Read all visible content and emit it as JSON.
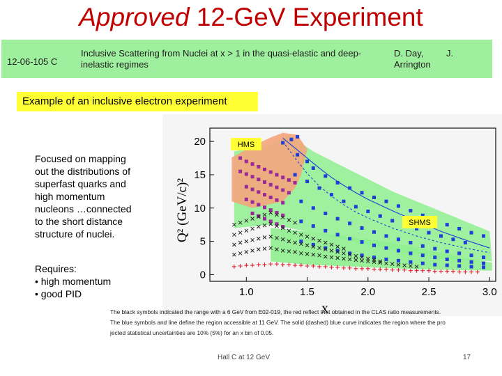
{
  "slide": {
    "title_italic": "Approved",
    "title_rest": " 12-GeV Experiment",
    "experiment": {
      "id": "12-06-105  C",
      "title": "Inclusive Scattering from Nuclei at x > 1 in the quasi-elastic and deep-inelastic regimes",
      "authors_line1": "D. Day,",
      "authors_j": "J.",
      "authors_line2": "Arrington"
    },
    "example_label": "Example of an inclusive electron experiment",
    "description": "Focused on mapping out the distributions of superfast quarks and high momentum nucleons …connected to the short distance structure of nuclei.",
    "requires": {
      "heading": "Requires:",
      "items": [
        "• high momentum",
        "• good PID"
      ]
    },
    "caption_lines": [
      "The black symbols indicated the range with a 6 GeV from E02-019, the red reflect that obtained in the CLAS ratio measurements.",
      "The blue symbols and line define the region accessible at 11 GeV. The solid (dashed) blue curve indicates the region where the pro",
      "jected statistical uncertainties are 10% (5%) for an x bin of 0.05."
    ],
    "footer": "Hall C at 12 GeV",
    "page_number": "17"
  },
  "chart_data": {
    "type": "scatter",
    "xlabel": "x",
    "ylabel": "Q² (GeV/c)²",
    "xlim": [
      0.7,
      3.05
    ],
    "ylim": [
      -1,
      22
    ],
    "x_ticks": [
      "1.0",
      "1.5",
      "2.0",
      "2.5",
      "3.0"
    ],
    "y_ticks": [
      "0",
      "5",
      "10",
      "15",
      "20"
    ],
    "annotations": [
      "HMS",
      "SHMS"
    ],
    "regions": {
      "hms_color": "#f4a57c",
      "shms_color": "#8ff08f"
    },
    "series": [
      {
        "marker": "square",
        "color": "#1f3fd6",
        "points": [
          [
            1.3,
            19.8
          ],
          [
            1.37,
            20.3
          ],
          [
            1.42,
            20.7
          ],
          [
            1.42,
            18.0
          ],
          [
            1.5,
            17.0
          ],
          [
            1.55,
            16.0
          ],
          [
            1.65,
            14.8
          ],
          [
            1.75,
            13.8
          ],
          [
            1.85,
            13.0
          ],
          [
            1.95,
            12.3
          ],
          [
            2.05,
            11.6
          ],
          [
            2.15,
            11.0
          ],
          [
            2.25,
            10.3
          ],
          [
            2.35,
            9.6
          ],
          [
            2.45,
            8.9
          ],
          [
            2.55,
            8.2
          ],
          [
            2.65,
            7.5
          ],
          [
            2.75,
            6.9
          ],
          [
            2.85,
            6.3
          ],
          [
            2.95,
            5.8
          ],
          [
            1.4,
            15.0
          ],
          [
            1.5,
            14.0
          ],
          [
            1.6,
            13.0
          ],
          [
            1.7,
            12.0
          ],
          [
            1.8,
            11.0
          ],
          [
            1.9,
            10.2
          ],
          [
            2.0,
            9.5
          ],
          [
            2.1,
            8.8
          ],
          [
            2.2,
            8.1
          ],
          [
            2.3,
            7.5
          ],
          [
            2.4,
            6.9
          ],
          [
            2.5,
            6.3
          ],
          [
            2.6,
            5.8
          ],
          [
            2.7,
            5.3
          ],
          [
            2.8,
            4.8
          ],
          [
            1.45,
            11.0
          ],
          [
            1.55,
            10.0
          ],
          [
            1.65,
            9.2
          ],
          [
            1.75,
            8.4
          ],
          [
            1.85,
            7.7
          ],
          [
            1.95,
            7.0
          ],
          [
            2.05,
            6.4
          ],
          [
            2.15,
            5.8
          ],
          [
            2.25,
            5.3
          ],
          [
            2.35,
            4.8
          ],
          [
            2.45,
            4.3
          ],
          [
            2.55,
            3.9
          ],
          [
            2.65,
            3.5
          ],
          [
            2.75,
            3.2
          ],
          [
            2.85,
            2.9
          ],
          [
            2.95,
            2.6
          ],
          [
            1.45,
            8.0
          ],
          [
            1.55,
            7.3
          ],
          [
            1.65,
            6.6
          ],
          [
            1.75,
            6.0
          ],
          [
            1.85,
            5.4
          ],
          [
            1.95,
            4.9
          ],
          [
            2.05,
            4.4
          ],
          [
            2.15,
            4.0
          ],
          [
            2.25,
            3.6
          ],
          [
            2.35,
            3.2
          ],
          [
            2.45,
            2.9
          ],
          [
            2.55,
            2.6
          ],
          [
            2.65,
            2.3
          ],
          [
            2.75,
            2.1
          ],
          [
            2.85,
            1.9
          ],
          [
            2.95,
            1.7
          ],
          [
            1.45,
            5.0
          ],
          [
            1.55,
            4.5
          ],
          [
            1.65,
            4.0
          ],
          [
            1.75,
            3.6
          ],
          [
            1.85,
            3.2
          ],
          [
            1.95,
            2.9
          ],
          [
            2.05,
            2.6
          ],
          [
            2.15,
            2.3
          ],
          [
            2.25,
            2.1
          ],
          [
            2.35,
            1.9
          ],
          [
            2.45,
            1.7
          ],
          [
            2.55,
            1.5
          ],
          [
            2.65,
            1.4
          ],
          [
            2.75,
            1.3
          ],
          [
            2.85,
            1.2
          ],
          [
            2.95,
            1.1
          ]
        ]
      },
      {
        "marker": "square",
        "color": "#9a2a9a",
        "points": [
          [
            0.95,
            17.5
          ],
          [
            1.0,
            17.0
          ],
          [
            1.05,
            16.6
          ],
          [
            1.1,
            16.2
          ],
          [
            1.15,
            15.8
          ],
          [
            1.2,
            15.4
          ],
          [
            1.25,
            15.0
          ],
          [
            1.3,
            14.6
          ],
          [
            1.35,
            14.2
          ],
          [
            1.4,
            13.8
          ],
          [
            0.95,
            15.5
          ],
          [
            1.0,
            15.1
          ],
          [
            1.05,
            14.7
          ],
          [
            1.1,
            14.3
          ],
          [
            1.15,
            13.9
          ],
          [
            1.2,
            13.5
          ],
          [
            1.25,
            13.1
          ],
          [
            1.3,
            12.7
          ],
          [
            1.35,
            12.3
          ],
          [
            1.0,
            13.2
          ],
          [
            1.05,
            12.8
          ],
          [
            1.1,
            12.4
          ],
          [
            1.15,
            12.0
          ],
          [
            1.2,
            11.6
          ],
          [
            1.25,
            11.2
          ],
          [
            1.3,
            10.8
          ],
          [
            1.0,
            11.3
          ],
          [
            1.05,
            10.9
          ],
          [
            1.1,
            10.5
          ],
          [
            1.15,
            10.1
          ],
          [
            1.2,
            9.7
          ],
          [
            1.25,
            9.3
          ],
          [
            1.3,
            8.9
          ],
          [
            1.05,
            9.2
          ],
          [
            1.1,
            8.8
          ],
          [
            1.15,
            8.4
          ],
          [
            1.2,
            8.0
          ],
          [
            1.25,
            7.6
          ],
          [
            1.3,
            7.2
          ]
        ]
      },
      {
        "marker": "cross",
        "color": "#222222",
        "points": [
          [
            0.9,
            7.5
          ],
          [
            0.95,
            7.8
          ],
          [
            1.0,
            8.1
          ],
          [
            1.05,
            8.4
          ],
          [
            1.1,
            8.7
          ],
          [
            1.15,
            9.0
          ],
          [
            1.2,
            9.3
          ],
          [
            1.25,
            9.0
          ],
          [
            1.3,
            8.6
          ],
          [
            1.35,
            8.2
          ],
          [
            1.4,
            7.8
          ],
          [
            0.9,
            6.0
          ],
          [
            0.95,
            6.3
          ],
          [
            1.0,
            6.6
          ],
          [
            1.05,
            6.9
          ],
          [
            1.1,
            7.2
          ],
          [
            1.15,
            7.4
          ],
          [
            1.2,
            7.6
          ],
          [
            1.25,
            7.3
          ],
          [
            1.3,
            7.0
          ],
          [
            1.35,
            6.6
          ],
          [
            1.4,
            6.3
          ],
          [
            1.45,
            6.0
          ],
          [
            1.5,
            5.7
          ],
          [
            1.55,
            5.4
          ],
          [
            1.6,
            5.1
          ],
          [
            1.65,
            4.8
          ],
          [
            1.7,
            4.5
          ],
          [
            1.75,
            4.2
          ],
          [
            1.8,
            3.9
          ],
          [
            0.9,
            4.5
          ],
          [
            0.95,
            4.8
          ],
          [
            1.0,
            5.0
          ],
          [
            1.05,
            5.2
          ],
          [
            1.1,
            5.4
          ],
          [
            1.15,
            5.6
          ],
          [
            1.2,
            5.7
          ],
          [
            1.25,
            5.5
          ],
          [
            1.3,
            5.3
          ],
          [
            1.35,
            5.0
          ],
          [
            1.4,
            4.8
          ],
          [
            1.45,
            4.6
          ],
          [
            1.5,
            4.4
          ],
          [
            1.55,
            4.2
          ],
          [
            1.6,
            4.0
          ],
          [
            1.65,
            3.8
          ],
          [
            1.7,
            3.6
          ],
          [
            1.75,
            3.4
          ],
          [
            1.8,
            3.2
          ],
          [
            1.85,
            3.0
          ],
          [
            1.9,
            2.8
          ],
          [
            1.95,
            2.6
          ],
          [
            2.0,
            2.4
          ],
          [
            2.05,
            2.2
          ],
          [
            2.1,
            2.0
          ],
          [
            0.9,
            3.0
          ],
          [
            0.95,
            3.2
          ],
          [
            1.0,
            3.4
          ],
          [
            1.05,
            3.6
          ],
          [
            1.1,
            3.8
          ],
          [
            1.15,
            3.9
          ],
          [
            1.2,
            4.0
          ],
          [
            1.25,
            3.8
          ],
          [
            1.3,
            3.6
          ],
          [
            1.35,
            3.5
          ],
          [
            1.4,
            3.4
          ],
          [
            1.45,
            3.2
          ],
          [
            1.5,
            3.1
          ],
          [
            1.55,
            3.0
          ],
          [
            1.6,
            2.9
          ],
          [
            1.65,
            2.7
          ],
          [
            1.7,
            2.6
          ],
          [
            1.75,
            2.5
          ],
          [
            1.8,
            2.4
          ],
          [
            1.85,
            2.3
          ],
          [
            1.9,
            2.2
          ],
          [
            1.95,
            2.1
          ],
          [
            2.0,
            2.0
          ],
          [
            2.05,
            1.9
          ],
          [
            2.1,
            1.8
          ],
          [
            2.15,
            1.7
          ],
          [
            2.2,
            1.6
          ],
          [
            2.25,
            1.5
          ],
          [
            2.3,
            1.4
          ],
          [
            2.35,
            1.3
          ],
          [
            2.4,
            1.2
          ]
        ]
      },
      {
        "marker": "plus",
        "color": "#e0202a",
        "points": [
          [
            0.9,
            1.2
          ],
          [
            0.95,
            1.3
          ],
          [
            1.0,
            1.4
          ],
          [
            1.05,
            1.4
          ],
          [
            1.1,
            1.5
          ],
          [
            1.15,
            1.5
          ],
          [
            1.2,
            1.6
          ],
          [
            1.25,
            1.6
          ],
          [
            1.3,
            1.5
          ],
          [
            1.35,
            1.5
          ],
          [
            1.4,
            1.4
          ],
          [
            1.45,
            1.4
          ],
          [
            1.5,
            1.3
          ],
          [
            1.55,
            1.3
          ],
          [
            1.6,
            1.2
          ],
          [
            1.65,
            1.2
          ],
          [
            1.7,
            1.1
          ],
          [
            1.75,
            1.1
          ],
          [
            1.8,
            1.0
          ],
          [
            1.85,
            1.0
          ],
          [
            1.9,
            0.9
          ],
          [
            1.95,
            0.9
          ],
          [
            2.0,
            0.9
          ],
          [
            2.05,
            0.8
          ],
          [
            2.1,
            0.8
          ],
          [
            2.15,
            0.8
          ],
          [
            2.2,
            0.7
          ],
          [
            2.25,
            0.7
          ],
          [
            2.3,
            0.7
          ],
          [
            2.35,
            0.6
          ],
          [
            2.4,
            0.6
          ],
          [
            2.45,
            0.6
          ],
          [
            2.5,
            0.6
          ],
          [
            2.55,
            0.5
          ],
          [
            2.6,
            0.5
          ],
          [
            2.65,
            0.5
          ],
          [
            2.7,
            0.5
          ],
          [
            2.75,
            0.4
          ],
          [
            2.8,
            0.4
          ],
          [
            2.85,
            0.4
          ],
          [
            2.9,
            0.4
          ]
        ]
      }
    ],
    "curves": [
      {
        "style": "solid",
        "color": "#1f3fd6",
        "points": [
          [
            1.3,
            20.5
          ],
          [
            1.4,
            19.0
          ],
          [
            1.5,
            17.5
          ],
          [
            1.6,
            16.0
          ],
          [
            1.7,
            14.6
          ],
          [
            1.8,
            13.4
          ],
          [
            1.9,
            12.3
          ],
          [
            2.0,
            11.3
          ],
          [
            2.2,
            9.6
          ],
          [
            2.4,
            8.0
          ],
          [
            2.6,
            6.5
          ],
          [
            2.8,
            5.2
          ],
          [
            3.0,
            4.0
          ]
        ]
      },
      {
        "style": "dashed",
        "color": "#1f3fd6",
        "points": [
          [
            1.3,
            20.0
          ],
          [
            1.4,
            17.5
          ],
          [
            1.5,
            15.2
          ],
          [
            1.6,
            13.3
          ],
          [
            1.7,
            11.8
          ],
          [
            1.8,
            10.5
          ],
          [
            1.9,
            9.4
          ],
          [
            2.0,
            8.5
          ],
          [
            2.2,
            7.0
          ],
          [
            2.4,
            5.8
          ],
          [
            2.6,
            4.8
          ],
          [
            2.8,
            4.0
          ],
          [
            3.0,
            3.3
          ]
        ]
      }
    ]
  }
}
